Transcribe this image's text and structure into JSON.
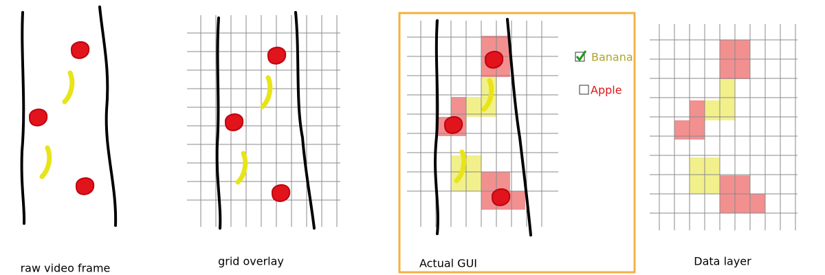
{
  "panels": [
    {
      "caption": "raw video frame"
    },
    {
      "caption": "grid overlay"
    },
    {
      "caption": "Actual GUI",
      "legend": [
        "Banana",
        "Apple"
      ]
    },
    {
      "caption": "Data layer"
    }
  ]
}
